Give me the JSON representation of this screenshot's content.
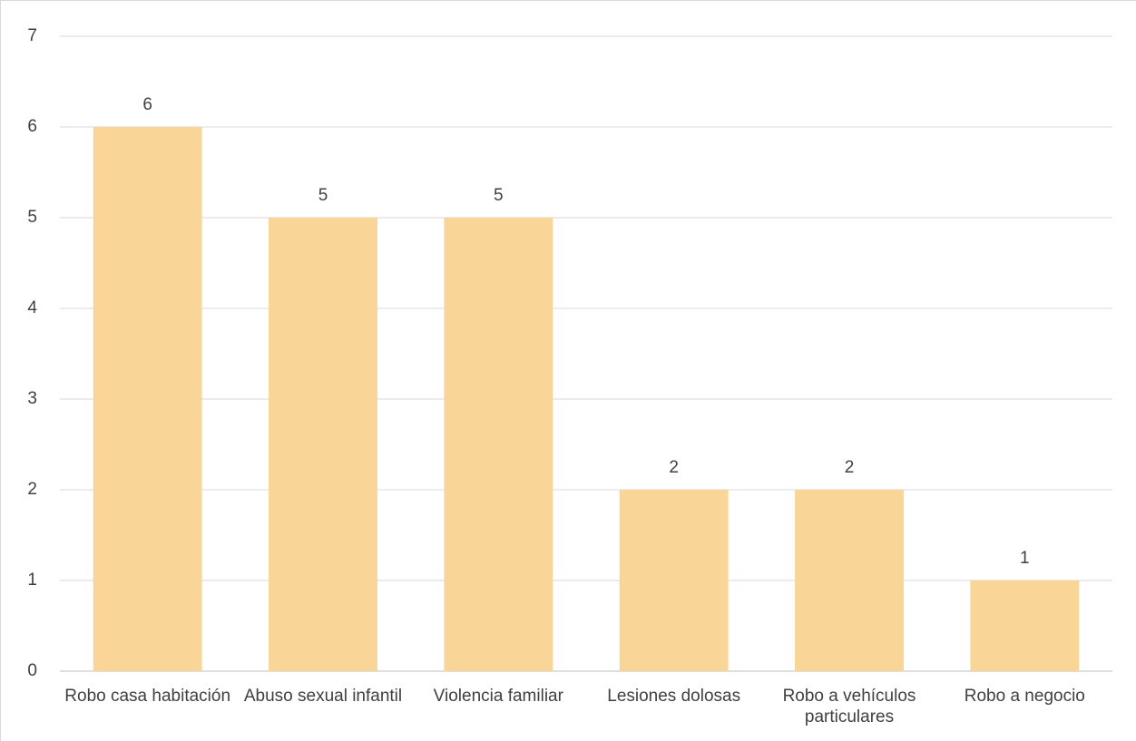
{
  "chart_data": {
    "type": "bar",
    "categories": [
      "Robo casa habitación",
      "Abuso sexual infantil",
      "Violencia familiar",
      "Lesiones dolosas",
      "Robo a vehículos particulares",
      "Robo a negocio"
    ],
    "values": [
      6,
      5,
      5,
      2,
      2,
      1
    ],
    "color": "#f9d597",
    "ylim": [
      0,
      7
    ],
    "yticks": [
      0,
      1,
      2,
      3,
      4,
      5,
      6,
      7
    ],
    "grid": true
  }
}
